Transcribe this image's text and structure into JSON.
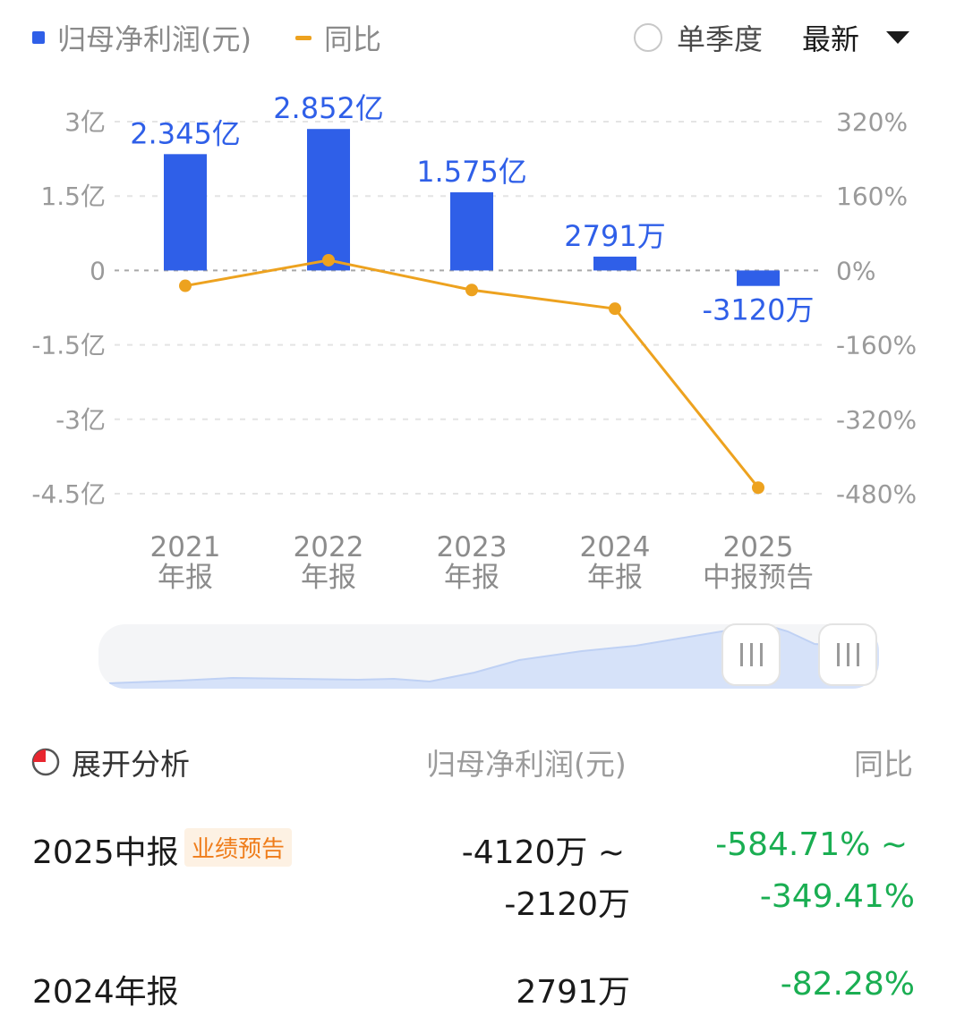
{
  "legend": {
    "series1_label": "归母净利润(元)",
    "series2_label": "同比"
  },
  "controls": {
    "single_quarter_label": "单季度",
    "sort_label": "最新"
  },
  "colors": {
    "bar": "#2f5fe8",
    "line": "#eda21f",
    "positive_text": "#1aae52",
    "tag_text": "#ef7d1b"
  },
  "chart_data": {
    "type": "bar",
    "categories": [
      [
        "2021",
        "年报"
      ],
      [
        "2022",
        "年报"
      ],
      [
        "2023",
        "年报"
      ],
      [
        "2024",
        "年报"
      ],
      [
        "2025",
        "中报预告"
      ]
    ],
    "series": [
      {
        "name": "归母净利润(元)",
        "type": "bar",
        "axis": "left",
        "values": [
          234500000,
          285200000,
          157500000,
          27910000,
          -31200000
        ],
        "labels": [
          "2.345亿",
          "2.852亿",
          "1.575亿",
          "2791万",
          "-3120万"
        ]
      },
      {
        "name": "同比",
        "type": "line",
        "axis": "right",
        "values": [
          -33,
          22,
          -42,
          -82.28,
          -467
        ]
      }
    ],
    "left_axis": {
      "ticks": [
        "3亿",
        "1.5亿",
        "0",
        "-1.5亿",
        "-3亿",
        "-4.5亿"
      ],
      "ylim": [
        -450000000,
        300000000
      ]
    },
    "right_axis": {
      "ticks": [
        "320%",
        "160%",
        "0%",
        "-160%",
        "-320%",
        "-480%"
      ],
      "ylim": [
        -480,
        320
      ]
    },
    "grid": true,
    "legend_position": "top-left"
  },
  "table": {
    "expand_label": "展开分析",
    "col_profit": "归母净利润(元)",
    "col_yoy": "同比",
    "rows": [
      {
        "period": "2025中报",
        "tag": "业绩预告",
        "profit_line1": "-4120万 ~",
        "profit_line2": "-2120万",
        "yoy_line1": "-584.71% ~",
        "yoy_line2": "-349.41%"
      },
      {
        "period": "2024年报",
        "profit_line1": "2791万",
        "yoy_line1": "-82.28%"
      }
    ]
  }
}
